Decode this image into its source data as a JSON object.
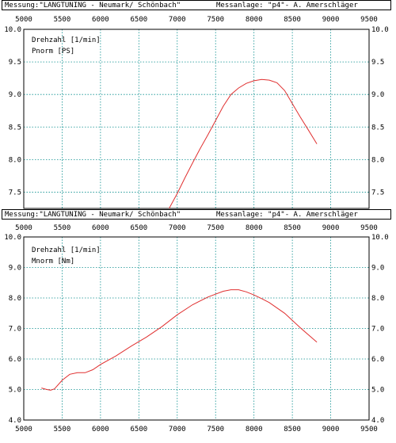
{
  "header_top": {
    "left": "Messung:\"LANGTUNING - Neumark/ Schönbach\"",
    "right": "Messanlage: \"p4\"- A. Amerschläger"
  },
  "header_bottom": {
    "left": "Messung:\"LANGTUNING - Neumark/ Schönbach\"",
    "right": "Messanlage: \"p4\"- A. Amerschläger"
  },
  "chart_data": [
    {
      "type": "line",
      "legend": [
        "Drehzahl [1/min]",
        "Pnorm [PS]"
      ],
      "xlim": [
        5000,
        9500
      ],
      "ylim": [
        7.25,
        10.0
      ],
      "x_ticks": [
        5000,
        5500,
        6000,
        6500,
        7000,
        7500,
        8000,
        8500,
        9000,
        9500
      ],
      "y_ticks": [
        "7.5",
        "8.0",
        "8.5",
        "9.0",
        "9.5",
        "10.0"
      ],
      "grid": true,
      "colors": {
        "line": "#e03030",
        "grid": "#0b8f8f"
      },
      "series": [
        {
          "x": [
            6880,
            7000,
            7100,
            7200,
            7300,
            7400,
            7500,
            7600,
            7700,
            7800,
            7900,
            8000,
            8100,
            8200,
            8300,
            8400,
            8500,
            8600,
            8700,
            8820
          ],
          "y": [
            7.22,
            7.48,
            7.72,
            7.95,
            8.17,
            8.38,
            8.6,
            8.82,
            9.0,
            9.1,
            9.17,
            9.21,
            9.23,
            9.22,
            9.18,
            9.06,
            8.86,
            8.66,
            8.47,
            8.24
          ]
        }
      ]
    },
    {
      "type": "line",
      "legend": [
        "Drehzahl [1/min]",
        "Mnorm [Nm]"
      ],
      "xlim": [
        5000,
        9500
      ],
      "ylim": [
        4.0,
        10.0
      ],
      "x_ticks": [
        5000,
        5500,
        6000,
        6500,
        7000,
        7500,
        8000,
        8500,
        9000,
        9500
      ],
      "y_ticks": [
        "4.0",
        "5.0",
        "6.0",
        "7.0",
        "8.0",
        "9.0",
        "10.0"
      ],
      "grid": true,
      "colors": {
        "line": "#e03030",
        "grid": "#0b8f8f"
      },
      "series": [
        {
          "x": [
            5230,
            5300,
            5350,
            5400,
            5500,
            5600,
            5700,
            5800,
            5900,
            6000,
            6200,
            6400,
            6600,
            6800,
            7000,
            7200,
            7400,
            7600,
            7700,
            7800,
            7900,
            8000,
            8100,
            8200,
            8400,
            8600,
            8820
          ],
          "y": [
            5.05,
            5.0,
            4.98,
            5.02,
            5.3,
            5.5,
            5.55,
            5.55,
            5.65,
            5.82,
            6.1,
            6.42,
            6.72,
            7.06,
            7.45,
            7.78,
            8.03,
            8.22,
            8.27,
            8.27,
            8.2,
            8.1,
            7.98,
            7.85,
            7.5,
            7.03,
            6.55
          ]
        }
      ]
    }
  ]
}
